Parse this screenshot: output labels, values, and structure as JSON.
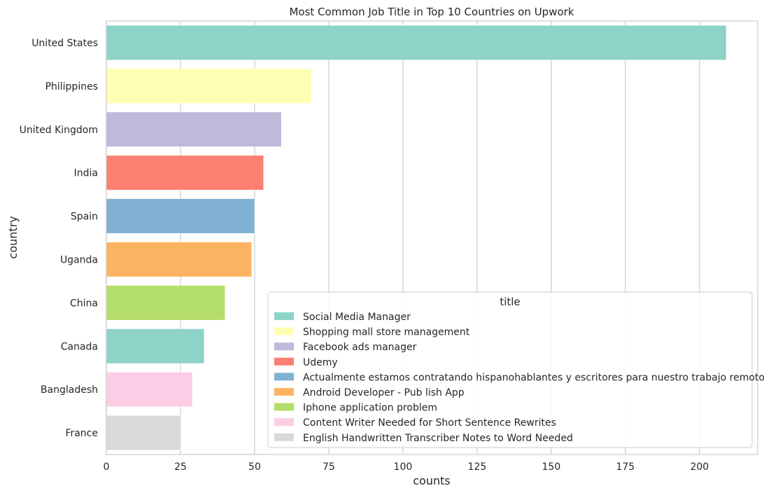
{
  "chart_data": {
    "type": "bar",
    "orientation": "horizontal",
    "title": "Most Common Job Title in Top 10 Countries on Upwork",
    "xlabel": "counts",
    "ylabel": "country",
    "xlim": [
      0,
      220
    ],
    "xticks": [
      0,
      25,
      50,
      75,
      100,
      125,
      150,
      175,
      200
    ],
    "grid": true,
    "categories": [
      "United States",
      "Philippines",
      "United Kingdom",
      "India",
      "Spain",
      "Uganda",
      "China",
      "Canada",
      "Bangladesh",
      "France"
    ],
    "values": [
      209,
      69,
      59,
      53,
      50,
      49,
      40,
      33,
      29,
      25
    ],
    "bar_colors": [
      "#8dd3c7",
      "#ffffb3",
      "#bebada",
      "#fb8072",
      "#80b1d3",
      "#fdb462",
      "#b3de69",
      "#8dd3c7",
      "#fccde5",
      "#d9d9d9"
    ],
    "legend": {
      "title": "title",
      "position": "lower-right",
      "entries": [
        {
          "label": "Social Media Manager",
          "color": "#8dd3c7"
        },
        {
          "label": "Shopping mall store management",
          "color": "#ffffb3"
        },
        {
          "label": "Facebook ads manager",
          "color": "#bebada"
        },
        {
          "label": "Udemy",
          "color": "#fb8072"
        },
        {
          "label": "Actualmente estamos contratando hispanohablantes y escritores para nuestro trabajo remoto.",
          "color": "#80b1d3"
        },
        {
          "label": "Android Developer - Pub lish App",
          "color": "#fdb462"
        },
        {
          "label": "Iphone application problem",
          "color": "#b3de69"
        },
        {
          "label": "Content Writer Needed for Short Sentence Rewrites",
          "color": "#fccde5"
        },
        {
          "label": "English Handwritten Transcriber  Notes to Word   Needed",
          "color": "#d9d9d9"
        }
      ]
    }
  }
}
